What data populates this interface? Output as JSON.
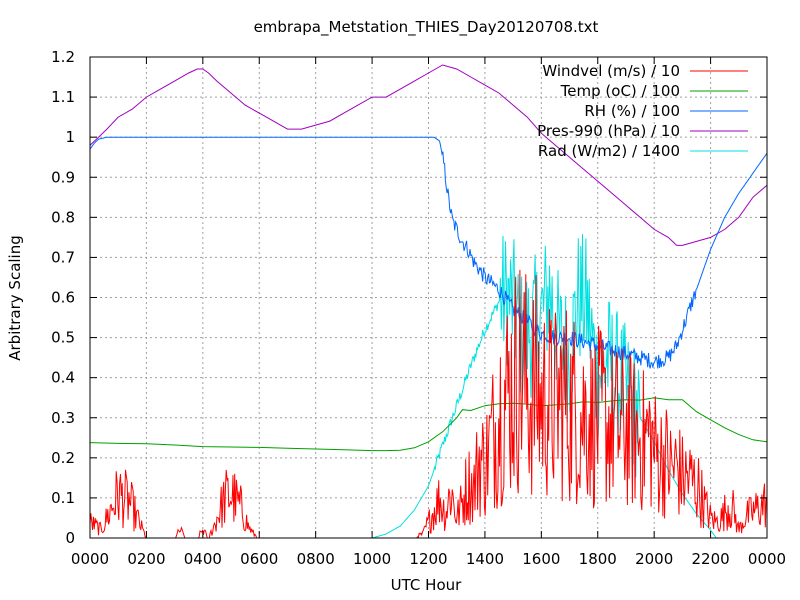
{
  "chart_data": {
    "type": "line",
    "title": "embrapa_Metstation_THIES_Day20120708.txt",
    "xlabel": "UTC Hour",
    "ylabel": "Arbitrary Scaling",
    "xlim": [
      0,
      2400
    ],
    "ylim": [
      0,
      1.2
    ],
    "grid": true,
    "legend_position": "top-right",
    "x_ticks": [
      "0000",
      "0200",
      "0400",
      "0600",
      "0800",
      "1000",
      "1200",
      "1400",
      "1600",
      "1800",
      "2000",
      "2200",
      "0000"
    ],
    "y_ticks": [
      "0",
      "0.1",
      "0.2",
      "0.3",
      "0.4",
      "0.5",
      "0.6",
      "0.7",
      "0.8",
      "0.9",
      "1",
      "1.1",
      "1.2"
    ],
    "series": [
      {
        "name": "Windvel (m/s) / 10",
        "color": "#ff0000",
        "noisy": true,
        "x": [
          0,
          20,
          40,
          60,
          80,
          100,
          120,
          140,
          160,
          180,
          200,
          220,
          240,
          260,
          280,
          300,
          320,
          340,
          360,
          380,
          400,
          420,
          440,
          460,
          480,
          500,
          520,
          540,
          560,
          580,
          600,
          620,
          1000,
          1100,
          1140,
          1180,
          1200,
          1220,
          1240,
          1260,
          1280,
          1300,
          1320,
          1340,
          1360,
          1380,
          1400,
          1420,
          1440,
          1460,
          1480,
          1500,
          1520,
          1540,
          1560,
          1580,
          1600,
          1620,
          1640,
          1660,
          1680,
          1700,
          1720,
          1740,
          1760,
          1780,
          1800,
          1820,
          1840,
          1860,
          1880,
          1900,
          1920,
          1940,
          1960,
          1980,
          2000,
          2020,
          2040,
          2060,
          2080,
          2100,
          2120,
          2140,
          2160,
          2180,
          2200,
          2220,
          2240,
          2260,
          2280,
          2300,
          2320,
          2340,
          2360,
          2380,
          2400
        ],
        "y": [
          0.04,
          0.03,
          0.02,
          0.05,
          0.08,
          0.11,
          0.1,
          0.09,
          0.06,
          0.03,
          0.0,
          0.0,
          0.0,
          0.0,
          0.0,
          0.0,
          0.02,
          0.0,
          0.0,
          0.0,
          0.02,
          0.0,
          0.03,
          0.07,
          0.1,
          0.11,
          0.09,
          0.07,
          0.03,
          0.01,
          0.0,
          0.0,
          0.0,
          0.0,
          0.0,
          0.01,
          0.04,
          0.07,
          0.1,
          0.06,
          0.12,
          0.05,
          0.09,
          0.14,
          0.12,
          0.2,
          0.18,
          0.24,
          0.28,
          0.35,
          0.36,
          0.38,
          0.42,
          0.4,
          0.35,
          0.38,
          0.33,
          0.36,
          0.32,
          0.34,
          0.36,
          0.32,
          0.33,
          0.3,
          0.32,
          0.29,
          0.3,
          0.3,
          0.28,
          0.28,
          0.27,
          0.28,
          0.26,
          0.26,
          0.24,
          0.26,
          0.22,
          0.2,
          0.2,
          0.17,
          0.18,
          0.15,
          0.15,
          0.14,
          0.12,
          0.08,
          0.05,
          0.04,
          0.05,
          0.08,
          0.07,
          0.02,
          0.05,
          0.06,
          0.07,
          0.08,
          0.09
        ]
      },
      {
        "name": "Temp (oC) / 100",
        "color": "#00a000",
        "x": [
          0,
          100,
          200,
          300,
          400,
          500,
          600,
          700,
          800,
          900,
          1000,
          1050,
          1100,
          1150,
          1200,
          1250,
          1300,
          1320,
          1350,
          1400,
          1450,
          1500,
          1550,
          1600,
          1650,
          1700,
          1750,
          1800,
          1850,
          1900,
          1950,
          2000,
          2050,
          2100,
          2150,
          2200,
          2250,
          2300,
          2350,
          2400
        ],
        "y": [
          0.238,
          0.236,
          0.235,
          0.232,
          0.228,
          0.227,
          0.226,
          0.224,
          0.222,
          0.22,
          0.218,
          0.218,
          0.219,
          0.225,
          0.24,
          0.265,
          0.3,
          0.32,
          0.318,
          0.33,
          0.335,
          0.336,
          0.334,
          0.33,
          0.332,
          0.335,
          0.34,
          0.338,
          0.342,
          0.345,
          0.344,
          0.35,
          0.345,
          0.345,
          0.315,
          0.295,
          0.275,
          0.258,
          0.245,
          0.24
        ]
      },
      {
        "name": "RH (%) / 100",
        "color": "#0066ff",
        "noisy": true,
        "x": [
          0,
          15,
          30,
          60,
          100,
          200,
          400,
          600,
          800,
          1000,
          1100,
          1200,
          1220,
          1240,
          1255,
          1270,
          1285,
          1300,
          1320,
          1340,
          1360,
          1380,
          1400,
          1450,
          1500,
          1550,
          1600,
          1650,
          1700,
          1750,
          1800,
          1850,
          1900,
          1950,
          2000,
          2050,
          2080,
          2100,
          2120,
          2150,
          2200,
          2250,
          2300,
          2350,
          2400
        ],
        "y": [
          0.97,
          0.985,
          0.995,
          1.0,
          1.0,
          1.0,
          1.0,
          1.0,
          1.0,
          1.0,
          1.0,
          1.0,
          1.0,
          0.99,
          0.93,
          0.85,
          0.79,
          0.77,
          0.74,
          0.72,
          0.69,
          0.67,
          0.65,
          0.62,
          0.57,
          0.54,
          0.51,
          0.5,
          0.5,
          0.49,
          0.48,
          0.47,
          0.46,
          0.45,
          0.44,
          0.45,
          0.48,
          0.52,
          0.56,
          0.62,
          0.72,
          0.8,
          0.86,
          0.91,
          0.96
        ]
      },
      {
        "name": "Pres-990 (hPa) / 10",
        "color": "#a000c0",
        "x": [
          0,
          30,
          60,
          100,
          150,
          200,
          250,
          300,
          350,
          380,
          400,
          420,
          450,
          500,
          550,
          600,
          650,
          700,
          750,
          800,
          850,
          900,
          950,
          1000,
          1050,
          1100,
          1150,
          1200,
          1250,
          1300,
          1350,
          1400,
          1450,
          1500,
          1550,
          1600,
          1650,
          1700,
          1750,
          1800,
          1850,
          1900,
          1950,
          2000,
          2050,
          2080,
          2100,
          2150,
          2200,
          2250,
          2300,
          2350,
          2400
        ],
        "y": [
          0.98,
          1.0,
          1.02,
          1.05,
          1.07,
          1.1,
          1.12,
          1.14,
          1.16,
          1.17,
          1.17,
          1.16,
          1.14,
          1.11,
          1.08,
          1.06,
          1.04,
          1.02,
          1.02,
          1.03,
          1.04,
          1.06,
          1.08,
          1.1,
          1.1,
          1.12,
          1.14,
          1.16,
          1.18,
          1.17,
          1.15,
          1.13,
          1.11,
          1.08,
          1.05,
          1.01,
          0.98,
          0.95,
          0.92,
          0.89,
          0.86,
          0.83,
          0.8,
          0.77,
          0.75,
          0.73,
          0.73,
          0.74,
          0.75,
          0.77,
          0.8,
          0.85,
          0.88
        ]
      },
      {
        "name": "Rad (W/m2) / 1400",
        "color": "#00e0e0",
        "noisy": true,
        "x": [
          0,
          1000,
          1050,
          1100,
          1150,
          1200,
          1225,
          1250,
          1275,
          1300,
          1350,
          1400,
          1450,
          1480,
          1500,
          1530,
          1560,
          1600,
          1630,
          1660,
          1700,
          1730,
          1760,
          1800,
          1830,
          1860,
          1900,
          1950,
          2000,
          2050,
          2100,
          2150,
          2200,
          2220,
          2400
        ],
        "y": [
          0,
          0,
          0.01,
          0.03,
          0.07,
          0.13,
          0.18,
          0.23,
          0.28,
          0.33,
          0.43,
          0.52,
          0.59,
          0.6,
          0.58,
          0.5,
          0.52,
          0.55,
          0.62,
          0.5,
          0.45,
          0.6,
          0.58,
          0.4,
          0.45,
          0.41,
          0.36,
          0.3,
          0.24,
          0.17,
          0.11,
          0.06,
          0.02,
          0,
          0
        ]
      }
    ]
  }
}
